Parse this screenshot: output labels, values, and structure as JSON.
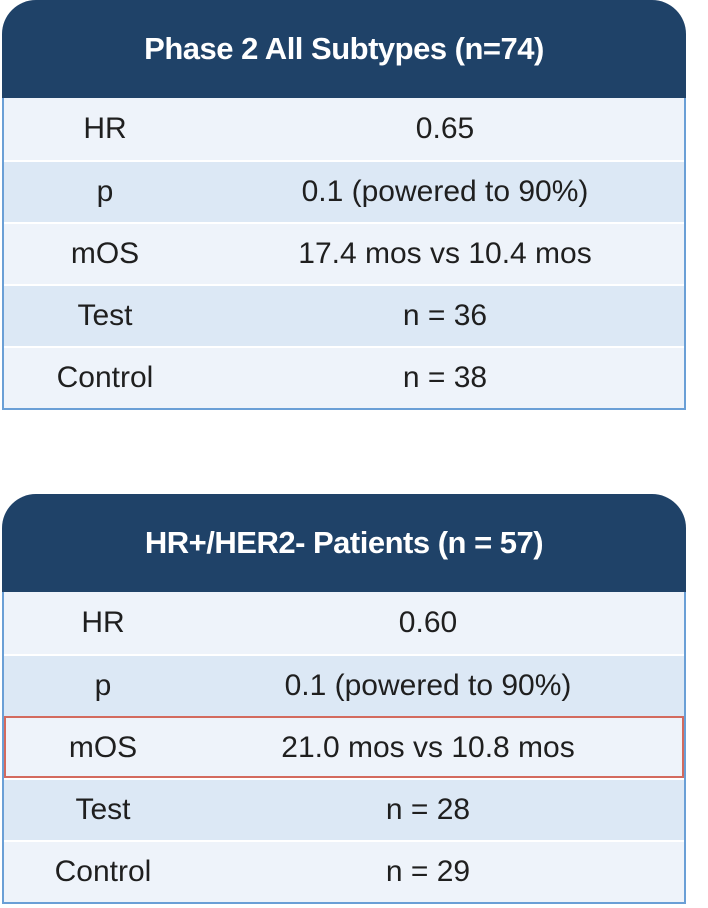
{
  "tables": [
    {
      "title": "Phase 2 All Subtypes (n=74)",
      "rows": [
        {
          "label": "HR",
          "value": "0.65"
        },
        {
          "label": "p",
          "value": "0.1 (powered to 90%)"
        },
        {
          "label": "mOS",
          "value": "17.4 mos vs 10.4 mos"
        },
        {
          "label": "Test",
          "value": "n = 36"
        },
        {
          "label": "Control",
          "value": "n = 38"
        }
      ]
    },
    {
      "title": "HR+/HER2- Patients (n = 57)",
      "rows": [
        {
          "label": "HR",
          "value": "0.60"
        },
        {
          "label": "p",
          "value": "0.1 (powered to 90%)"
        },
        {
          "label": "mOS",
          "value": "21.0 mos vs 10.8 mos"
        },
        {
          "label": "Test",
          "value": "n = 28"
        },
        {
          "label": "Control",
          "value": "n = 29"
        }
      ],
      "highlighted_row": "mOS",
      "highlight_color": "#d36a5e"
    }
  ],
  "colors": {
    "header_bg": "#1f4268",
    "header_text": "#ffffff",
    "row_light": "#eef3fa",
    "row_dark": "#dce8f5",
    "border": "#6a9fd6"
  }
}
